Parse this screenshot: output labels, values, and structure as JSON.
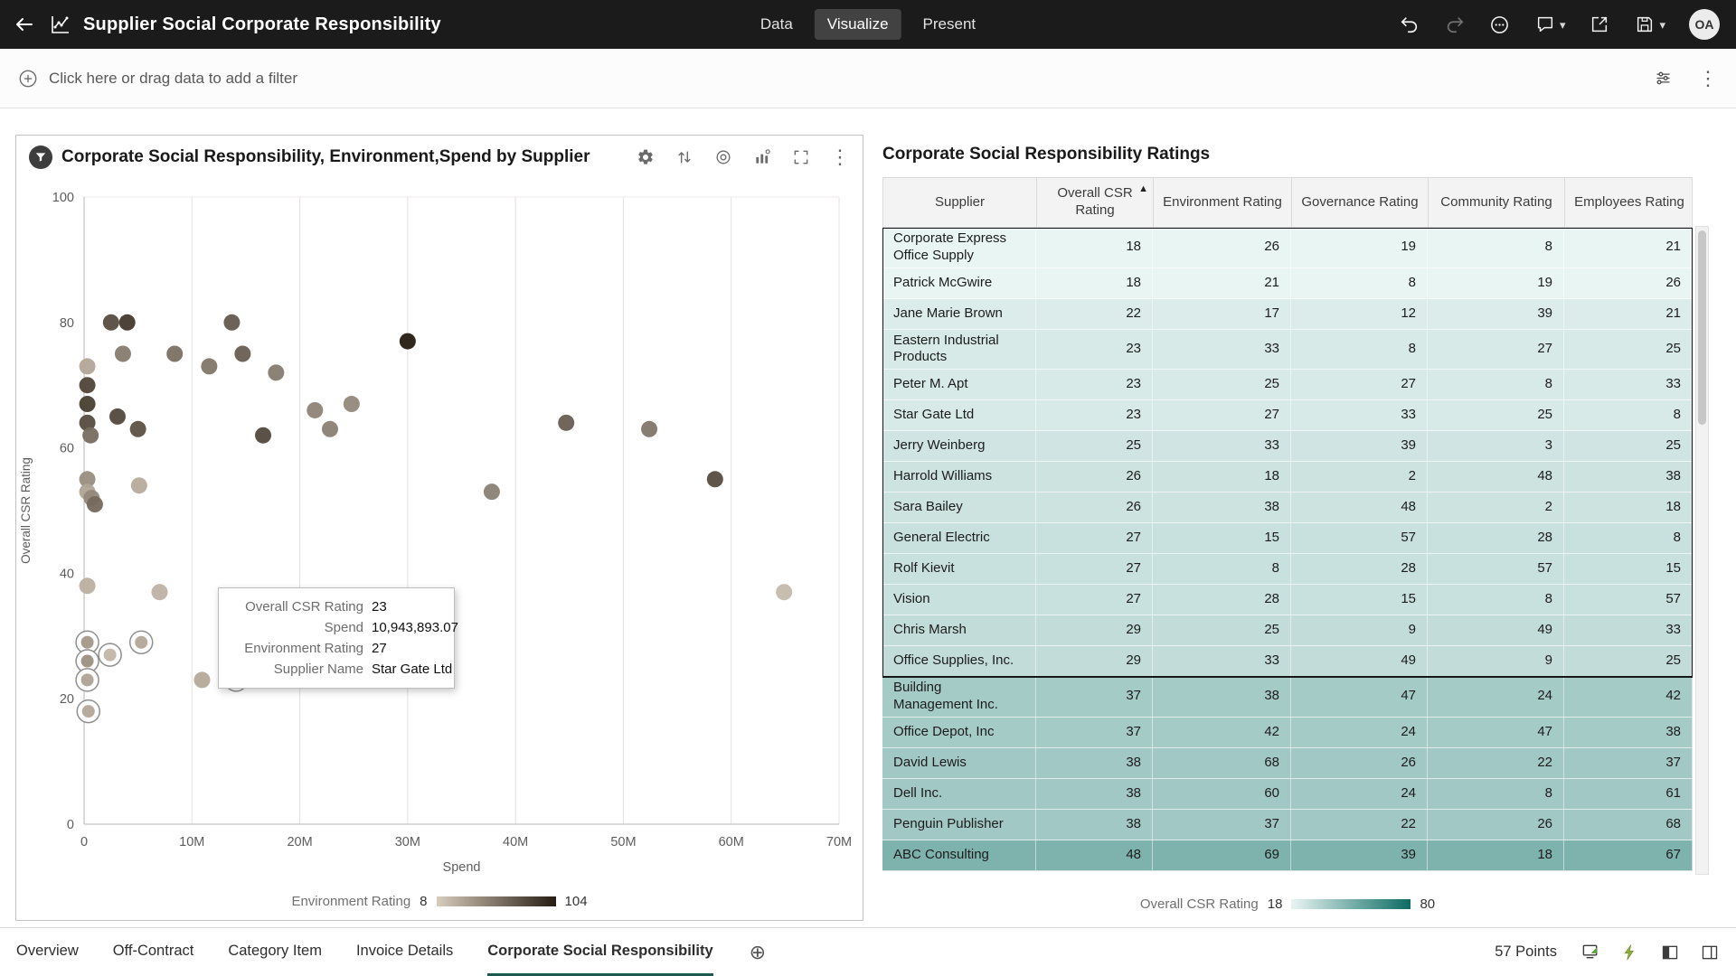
{
  "app": {
    "title": "Supplier Social Corporate Responsibility",
    "tabs": [
      {
        "label": "Data",
        "active": false
      },
      {
        "label": "Visualize",
        "active": true
      },
      {
        "label": "Present",
        "active": false
      }
    ],
    "avatar_initials": "OA"
  },
  "filter_bar": {
    "prompt": "Click here or drag data to add a filter"
  },
  "icons": {
    "kebab": "⋮",
    "caret_down": "▾",
    "sort_ascending": "▲",
    "add_canvas": "⊕"
  },
  "scatter": {
    "title": "Corporate Social Responsibility, Environment,Spend by Supplier",
    "legend": {
      "label": "Environment Rating",
      "min": "8",
      "max": "104"
    },
    "tooltip": {
      "rows": [
        {
          "label": "Overall CSR Rating",
          "value": "23"
        },
        {
          "label": "Spend",
          "value": "10,943,893.07"
        },
        {
          "label": "Environment Rating",
          "value": "27"
        },
        {
          "label": "Supplier Name",
          "value": "Star Gate Ltd"
        }
      ]
    }
  },
  "chart_data": {
    "type": "scatter",
    "title": "Corporate Social Responsibility, Environment,Spend by Supplier",
    "xlabel": "Spend",
    "ylabel": "Overall CSR Rating",
    "xlim": [
      0,
      70000000
    ],
    "ylim": [
      0,
      100
    ],
    "x_ticks": [
      "0",
      "10M",
      "20M",
      "30M",
      "40M",
      "50M",
      "60M",
      "70M"
    ],
    "y_ticks": [
      0,
      20,
      40,
      60,
      80,
      100
    ],
    "color_by": "Environment Rating",
    "color_range": [
      8,
      104
    ],
    "color_scale": [
      "#d8ccbd",
      "#261c11"
    ],
    "point_format": [
      "spend_millions",
      "overall_csr_rating",
      "environment_rating",
      "selected"
    ],
    "points": [
      [
        2.5,
        80,
        78,
        0
      ],
      [
        4,
        80,
        88,
        0
      ],
      [
        13.7,
        80,
        70,
        0
      ],
      [
        3.6,
        75,
        52,
        0
      ],
      [
        8.4,
        75,
        58,
        0
      ],
      [
        11.6,
        73,
        55,
        0
      ],
      [
        14.7,
        75,
        68,
        0
      ],
      [
        17.8,
        72,
        52,
        0
      ],
      [
        0.3,
        73,
        28,
        0
      ],
      [
        0.3,
        70,
        82,
        0
      ],
      [
        0.3,
        67,
        85,
        0
      ],
      [
        0.3,
        64,
        78,
        0
      ],
      [
        0.6,
        62,
        60,
        0
      ],
      [
        3.1,
        65,
        80,
        0
      ],
      [
        5,
        63,
        75,
        0
      ],
      [
        16.6,
        62,
        80,
        0
      ],
      [
        21.4,
        66,
        48,
        0
      ],
      [
        22.8,
        63,
        50,
        0
      ],
      [
        24.8,
        67,
        45,
        0
      ],
      [
        30,
        77,
        104,
        0
      ],
      [
        44.7,
        64,
        68,
        0
      ],
      [
        52.4,
        63,
        55,
        0
      ],
      [
        0.3,
        55,
        42,
        0
      ],
      [
        0.3,
        53,
        30,
        0
      ],
      [
        0.7,
        52,
        45,
        0
      ],
      [
        1,
        51,
        62,
        0
      ],
      [
        5.1,
        54,
        26,
        0
      ],
      [
        37.8,
        53,
        50,
        0
      ],
      [
        58.5,
        55,
        78,
        0
      ],
      [
        0.3,
        38,
        24,
        0
      ],
      [
        7,
        37,
        22,
        0
      ],
      [
        64.9,
        37,
        18,
        0
      ],
      [
        0.3,
        29,
        34,
        1
      ],
      [
        5.3,
        29,
        26,
        1
      ],
      [
        2.4,
        27,
        18,
        1
      ],
      [
        0.3,
        26,
        38,
        1
      ],
      [
        0.3,
        23,
        28,
        1
      ],
      [
        10.94,
        23,
        27,
        0
      ],
      [
        14.1,
        23,
        26,
        1
      ],
      [
        0.4,
        18,
        26,
        1
      ]
    ]
  },
  "table": {
    "title": "Corporate Social Responsibility Ratings",
    "columns": [
      "Supplier",
      "Overall CSR Rating",
      "Environment Rating",
      "Governance Rating",
      "Community Rating",
      "Employees Rating"
    ],
    "sort_column_index": 1,
    "selected_range": [
      0,
      13
    ],
    "color_scale": {
      "min_value": 18,
      "max_value": 80,
      "min_color": "#e9f5f3",
      "max_color": "#0c6b63"
    },
    "legend": {
      "label": "Overall CSR Rating",
      "min": "18",
      "max": "80"
    },
    "rows": [
      [
        "Corporate Express Office Supply",
        18,
        26,
        19,
        8,
        21
      ],
      [
        "Patrick McGwire",
        18,
        21,
        8,
        19,
        26
      ],
      [
        "Jane Marie Brown",
        22,
        17,
        12,
        39,
        21
      ],
      [
        "Eastern Industrial Products",
        23,
        33,
        8,
        27,
        25
      ],
      [
        "Peter M. Apt",
        23,
        25,
        27,
        8,
        33
      ],
      [
        "Star Gate Ltd",
        23,
        27,
        33,
        25,
        8
      ],
      [
        "Jerry Weinberg",
        25,
        33,
        39,
        3,
        25
      ],
      [
        "Harrold Williams",
        26,
        18,
        2,
        48,
        38
      ],
      [
        "Sara Bailey",
        26,
        38,
        48,
        2,
        18
      ],
      [
        "General Electric",
        27,
        15,
        57,
        28,
        8
      ],
      [
        "Rolf Kievit",
        27,
        8,
        28,
        57,
        15
      ],
      [
        "Vision",
        27,
        28,
        15,
        8,
        57
      ],
      [
        "Chris Marsh",
        29,
        25,
        9,
        49,
        33
      ],
      [
        "Office Supplies, Inc.",
        29,
        33,
        49,
        9,
        25
      ],
      [
        "Building Management Inc.",
        37,
        38,
        47,
        24,
        42
      ],
      [
        "Office Depot, Inc",
        37,
        42,
        24,
        47,
        38
      ],
      [
        "David Lewis",
        38,
        68,
        26,
        22,
        37
      ],
      [
        "Dell Inc.",
        38,
        60,
        24,
        8,
        61
      ],
      [
        "Penguin Publisher",
        38,
        37,
        22,
        26,
        68
      ],
      [
        "ABC Consulting",
        48,
        69,
        39,
        18,
        67
      ]
    ]
  },
  "bottom_bar": {
    "tabs": [
      "Overview",
      "Off-Contract",
      "Category Item",
      "Invoice Details",
      "Corporate Social Responsibility"
    ],
    "active_index": 4,
    "points_label": "57 Points"
  }
}
